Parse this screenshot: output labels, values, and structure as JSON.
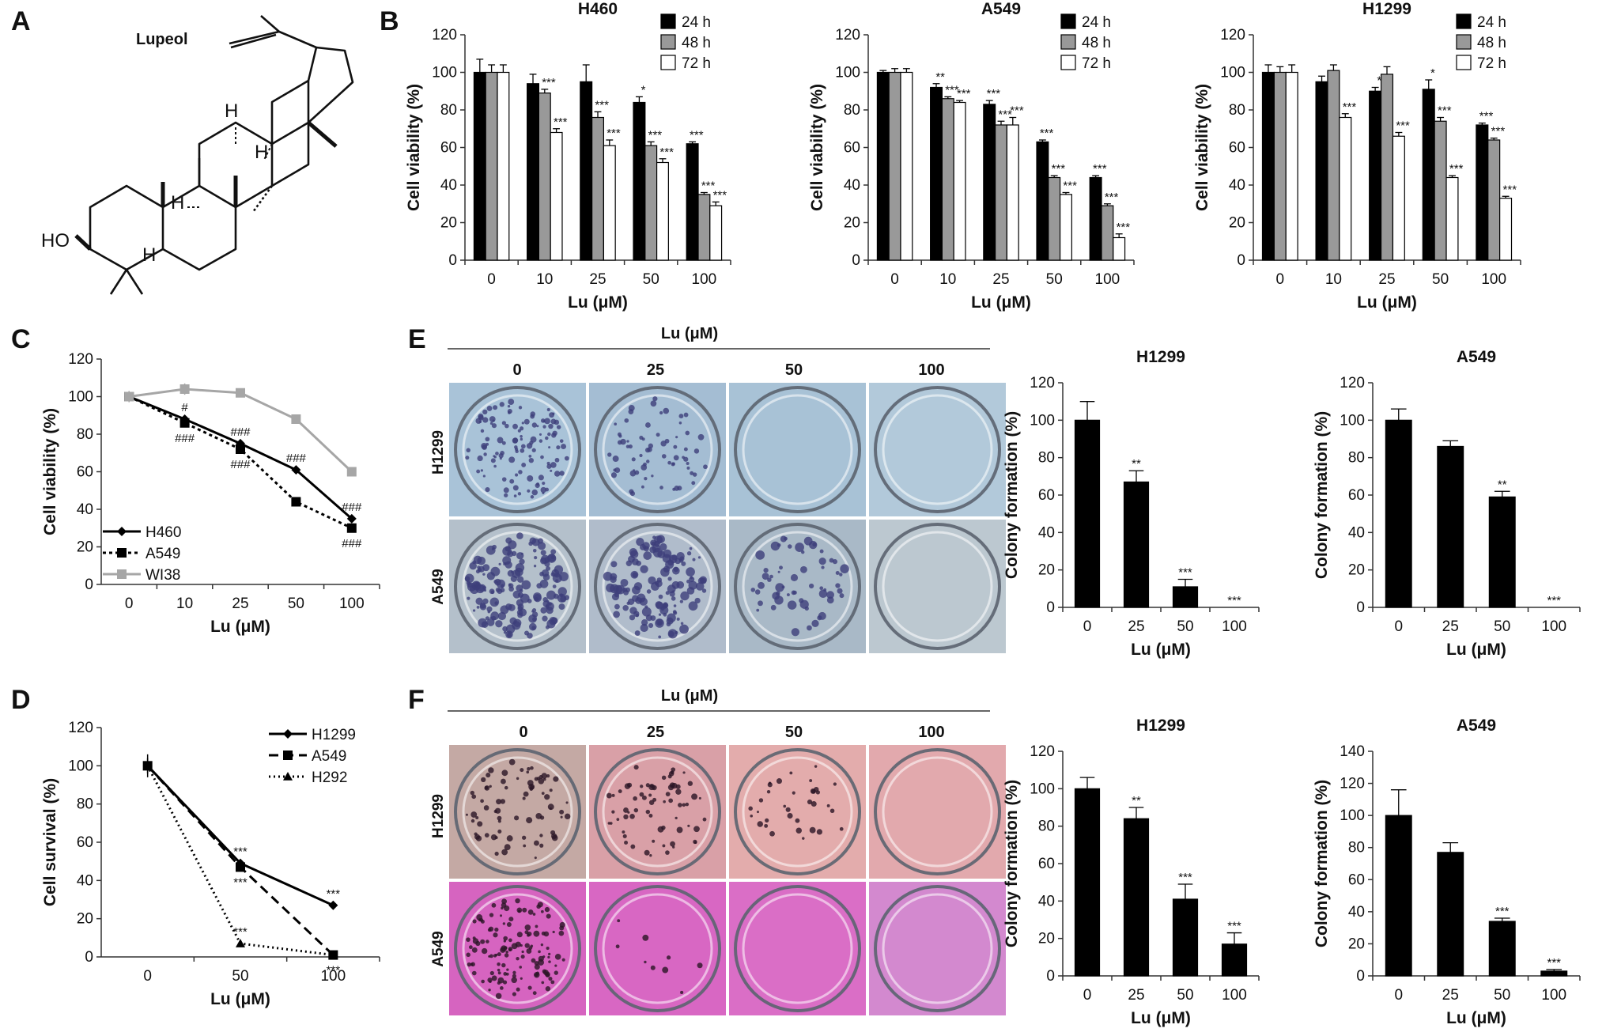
{
  "panel_letters": {
    "A": "A",
    "B": "B",
    "C": "C",
    "D": "D",
    "E": "E",
    "F": "F"
  },
  "molecule": {
    "name": "Lupeol",
    "ho": "HO",
    "h": "H"
  },
  "photo_panels": {
    "E": {
      "header": "Lu (μM)",
      "doses": [
        "0",
        "25",
        "50",
        "100"
      ],
      "rows": [
        "H1299",
        "A549"
      ],
      "row_colors": [
        [
          "#a9c3d8",
          "#a4bdd3",
          "#a8c2d6",
          "#b2c9da"
        ],
        [
          "#b4c0cb",
          "#b0bccb",
          "#a9b9c7",
          "#bcc8d0"
        ]
      ],
      "colony_color": "#3d3f7a",
      "colony_density": [
        [
          0.7,
          0.4,
          0.0,
          0.0
        ],
        [
          1.0,
          0.8,
          0.35,
          0.0
        ]
      ]
    },
    "F": {
      "header": "Lu (μM)",
      "doses": [
        "0",
        "25",
        "50",
        "100"
      ],
      "rows": [
        "H1299",
        "A549"
      ],
      "row_colors": [
        [
          "#c4a9a4",
          "#d9a0a7",
          "#e3acac",
          "#e2a9ad"
        ],
        [
          "#d664c0",
          "#d867c3",
          "#da6ec6",
          "#d389cf"
        ]
      ],
      "colony_color": "#2a1526",
      "colony_density": [
        [
          0.45,
          0.4,
          0.2,
          0.0
        ],
        [
          0.8,
          0.05,
          0.0,
          0.0
        ]
      ]
    }
  },
  "chart_data": [
    {
      "id": "B1",
      "type": "bar",
      "title": "H460",
      "xlabel": "Lu (μM)",
      "ylabel": "Cell viability (%)",
      "categories": [
        "0",
        "10",
        "25",
        "50",
        "100"
      ],
      "ylim": [
        0,
        120
      ],
      "yticks": [
        0,
        20,
        40,
        60,
        80,
        100,
        120
      ],
      "series": [
        {
          "name": "24 h",
          "color": "#000000",
          "values": [
            100,
            94,
            95,
            84,
            62
          ],
          "errors": [
            7,
            5,
            9,
            3,
            1
          ],
          "sig": [
            "",
            "",
            "",
            "*",
            "***"
          ]
        },
        {
          "name": "48 h",
          "color": "#999999",
          "values": [
            100,
            89,
            76,
            61,
            35
          ],
          "errors": [
            4,
            2,
            3,
            2,
            1
          ],
          "sig": [
            "",
            "***",
            "***",
            "***",
            "***"
          ]
        },
        {
          "name": "72 h",
          "color": "#ffffff",
          "values": [
            100,
            68,
            61,
            52,
            29
          ],
          "errors": [
            4,
            2,
            3,
            2,
            2
          ],
          "sig": [
            "",
            "***",
            "***",
            "***",
            "***"
          ]
        }
      ]
    },
    {
      "id": "B2",
      "type": "bar",
      "title": "A549",
      "xlabel": "Lu (μM)",
      "ylabel": "Cell viability (%)",
      "categories": [
        "0",
        "10",
        "25",
        "50",
        "100"
      ],
      "ylim": [
        0,
        120
      ],
      "yticks": [
        0,
        20,
        40,
        60,
        80,
        100,
        120
      ],
      "series": [
        {
          "name": "24 h",
          "color": "#000000",
          "values": [
            100,
            92,
            83,
            63,
            44
          ],
          "errors": [
            1,
            2,
            2,
            1,
            1
          ],
          "sig": [
            "",
            "**",
            "***",
            "***",
            "***"
          ]
        },
        {
          "name": "48 h",
          "color": "#999999",
          "values": [
            100,
            86,
            72,
            44,
            29
          ],
          "errors": [
            2,
            1,
            2,
            1,
            1
          ],
          "sig": [
            "",
            "***",
            "***",
            "***",
            "***"
          ]
        },
        {
          "name": "72 h",
          "color": "#ffffff",
          "values": [
            100,
            84,
            72,
            35,
            12
          ],
          "errors": [
            2,
            1,
            4,
            1,
            2
          ],
          "sig": [
            "",
            "***",
            "***",
            "***",
            "***"
          ]
        }
      ]
    },
    {
      "id": "B3",
      "type": "bar",
      "title": "H1299",
      "xlabel": "Lu (μM)",
      "ylabel": "Cell viability (%)",
      "categories": [
        "0",
        "10",
        "25",
        "50",
        "100"
      ],
      "ylim": [
        0,
        120
      ],
      "yticks": [
        0,
        20,
        40,
        60,
        80,
        100,
        120
      ],
      "series": [
        {
          "name": "24 h",
          "color": "#000000",
          "values": [
            100,
            95,
            90,
            91,
            72
          ],
          "errors": [
            4,
            3,
            2,
            5,
            1
          ],
          "sig": [
            "",
            "",
            "*",
            "*",
            "***"
          ]
        },
        {
          "name": "48 h",
          "color": "#999999",
          "values": [
            100,
            101,
            99,
            74,
            64
          ],
          "errors": [
            3,
            3,
            4,
            2,
            1
          ],
          "sig": [
            "",
            "",
            "",
            "***",
            "***"
          ]
        },
        {
          "name": "72 h",
          "color": "#ffffff",
          "values": [
            100,
            76,
            66,
            44,
            33
          ],
          "errors": [
            4,
            2,
            2,
            1,
            1
          ],
          "sig": [
            "",
            "***",
            "***",
            "***",
            "***"
          ]
        }
      ]
    },
    {
      "id": "C",
      "type": "line",
      "title": "",
      "xlabel": "Lu (μM)",
      "ylabel": "Cell viability (%)",
      "categories": [
        "0",
        "10",
        "25",
        "50",
        "100"
      ],
      "ylim": [
        0,
        120
      ],
      "yticks": [
        0,
        20,
        40,
        60,
        80,
        100,
        120
      ],
      "series": [
        {
          "name": "H460",
          "color": "#000000",
          "dash": "",
          "marker": "diamond",
          "values": [
            100,
            88,
            75,
            61,
            35
          ],
          "errors": [
            2,
            2,
            2,
            1,
            1
          ],
          "sig": [
            "",
            "#",
            "###",
            "###",
            "###"
          ],
          "sig_side": "above"
        },
        {
          "name": "A549",
          "color": "#000000",
          "dash": "4,4",
          "marker": "square",
          "values": [
            100,
            86,
            72,
            44,
            30
          ],
          "errors": [
            2,
            2,
            1,
            1,
            1
          ],
          "sig": [
            "",
            "###",
            "###",
            "",
            "###"
          ],
          "sig_side": "below"
        },
        {
          "name": "WI38",
          "color": "#a6a6a6",
          "dash": "",
          "marker": "square",
          "values": [
            100,
            104,
            102,
            88,
            60
          ],
          "errors": [
            3,
            3,
            1,
            1,
            2
          ],
          "sig": [
            "",
            "",
            "",
            "",
            ""
          ],
          "sig_side": "above"
        }
      ]
    },
    {
      "id": "D",
      "type": "line",
      "title": "",
      "xlabel": "Lu (μM)",
      "ylabel": "Cell survival (%)",
      "categories": [
        "0",
        "50",
        "100"
      ],
      "ylim": [
        0,
        120
      ],
      "yticks": [
        0,
        20,
        40,
        60,
        80,
        100,
        120
      ],
      "series": [
        {
          "name": "H1299",
          "color": "#000000",
          "dash": "",
          "marker": "diamond",
          "values": [
            100,
            49,
            27
          ],
          "errors": [
            4,
            2,
            1
          ],
          "sig": [
            "",
            "***",
            "***"
          ],
          "sig_side": "above"
        },
        {
          "name": "A549",
          "color": "#000000",
          "dash": "12,7",
          "marker": "square",
          "values": [
            100,
            47,
            1
          ],
          "errors": [
            4,
            2,
            1
          ],
          "sig": [
            "",
            "***",
            "***"
          ],
          "sig_side": "below"
        },
        {
          "name": "H292",
          "color": "#000000",
          "dash": "2,4",
          "marker": "triangle",
          "values": [
            100,
            7,
            1
          ],
          "errors": [
            6,
            1,
            1
          ],
          "sig": [
            "",
            "***",
            ""
          ],
          "sig_side": "above"
        }
      ]
    },
    {
      "id": "E1",
      "type": "bar",
      "title": "H1299",
      "xlabel": "Lu (μM)",
      "ylabel": "Colony formation (%)",
      "categories": [
        "0",
        "25",
        "50",
        "100"
      ],
      "ylim": [
        0,
        120
      ],
      "yticks": [
        0,
        20,
        40,
        60,
        80,
        100,
        120
      ],
      "series": [
        {
          "name": "",
          "color": "#000000",
          "values": [
            100,
            67,
            11,
            0
          ],
          "errors": [
            10,
            6,
            4,
            0
          ],
          "sig": [
            "",
            "**",
            "***",
            "***"
          ]
        }
      ]
    },
    {
      "id": "E2",
      "type": "bar",
      "title": "A549",
      "xlabel": "Lu (μM)",
      "ylabel": "Colony formation (%)",
      "categories": [
        "0",
        "25",
        "50",
        "100"
      ],
      "ylim": [
        0,
        120
      ],
      "yticks": [
        0,
        20,
        40,
        60,
        80,
        100,
        120
      ],
      "series": [
        {
          "name": "",
          "color": "#000000",
          "values": [
            100,
            86,
            59,
            0
          ],
          "errors": [
            6,
            3,
            3,
            0
          ],
          "sig": [
            "",
            "",
            "**",
            "***"
          ]
        }
      ]
    },
    {
      "id": "F1",
      "type": "bar",
      "title": "H1299",
      "xlabel": "Lu (μM)",
      "ylabel": "Colony formation (%)",
      "categories": [
        "0",
        "25",
        "50",
        "100"
      ],
      "ylim": [
        0,
        120
      ],
      "yticks": [
        0,
        20,
        40,
        60,
        80,
        100,
        120
      ],
      "series": [
        {
          "name": "",
          "color": "#000000",
          "values": [
            100,
            84,
            41,
            17
          ],
          "errors": [
            6,
            6,
            8,
            6
          ],
          "sig": [
            "",
            "**",
            "***",
            "***"
          ]
        }
      ]
    },
    {
      "id": "F2",
      "type": "bar",
      "title": "A549",
      "xlabel": "Lu (μM)",
      "ylabel": "Colony formation (%)",
      "categories": [
        "0",
        "25",
        "50",
        "100"
      ],
      "ylim": [
        0,
        140
      ],
      "yticks": [
        0,
        20,
        40,
        60,
        80,
        100,
        120,
        140
      ],
      "series": [
        {
          "name": "",
          "color": "#000000",
          "values": [
            100,
            77,
            34,
            3
          ],
          "errors": [
            16,
            6,
            2,
            1
          ],
          "sig": [
            "",
            "",
            "***",
            "***"
          ]
        }
      ]
    }
  ]
}
